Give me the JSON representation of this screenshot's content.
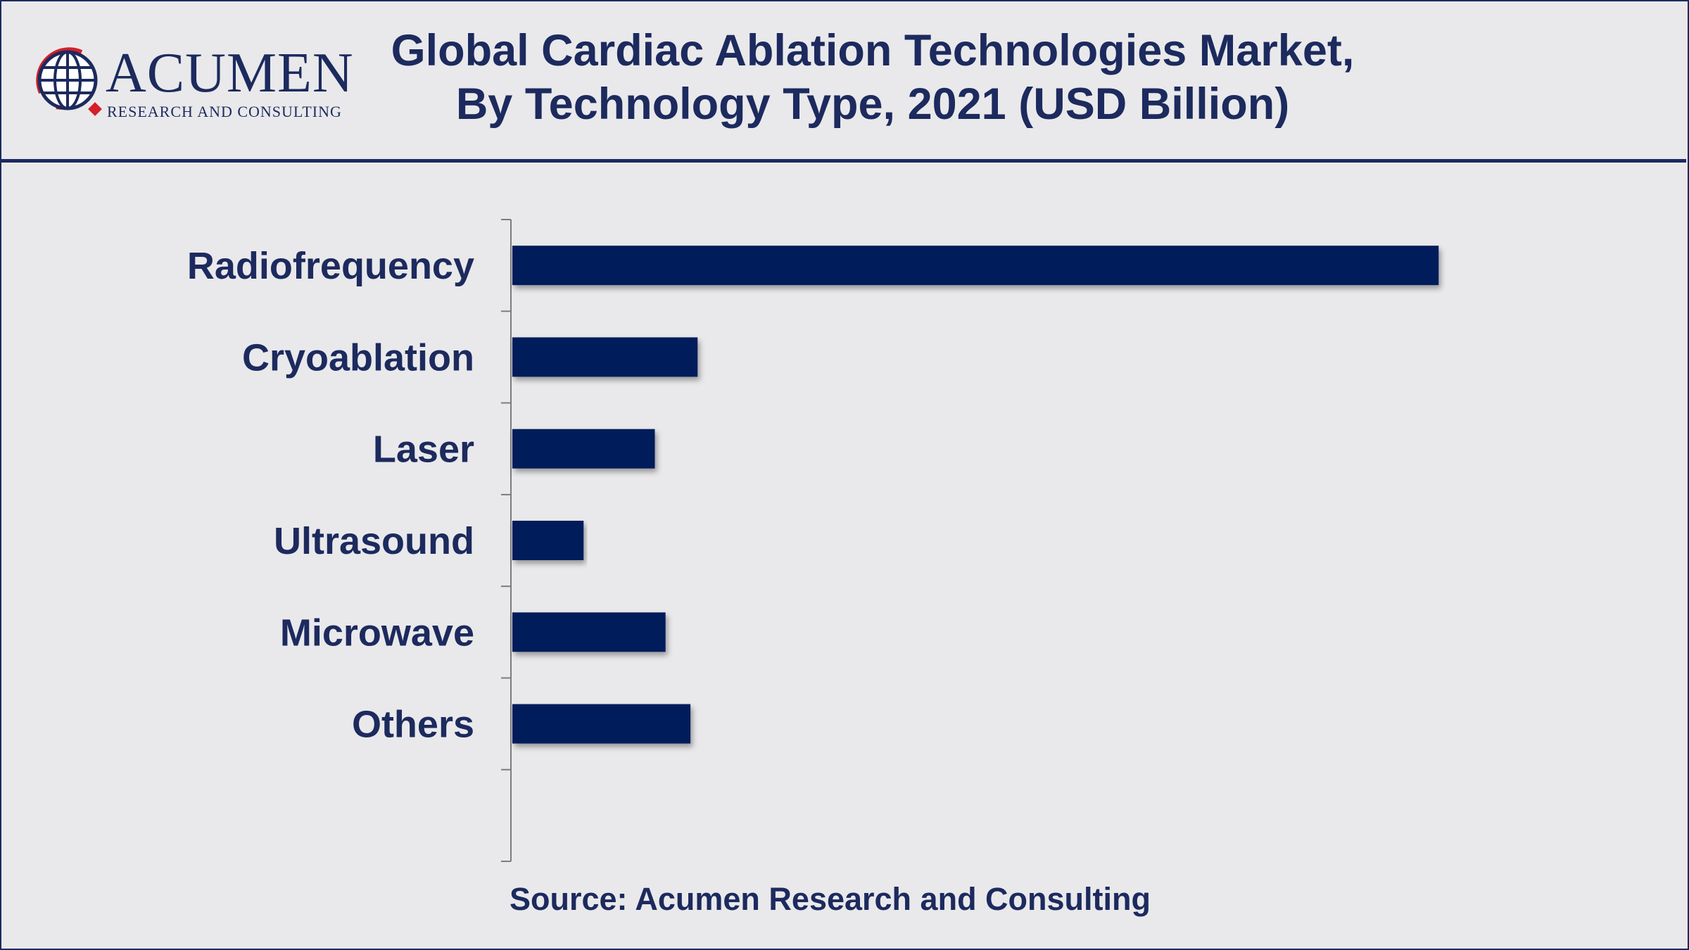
{
  "header": {
    "title_line1": "Global Cardiac Ablation Technologies Market,",
    "title_line2": "By Technology Type, 2021 (USD Billion)"
  },
  "logo": {
    "word": "ACUMEN",
    "sub": "RESEARCH AND CONSULTING",
    "icon": "globe-icon"
  },
  "footer": {
    "source": "Source: Acumen Research and Consulting"
  },
  "colors": {
    "bar": "#031c5a",
    "text": "#1c2a5e",
    "logo_accent": "#d42027",
    "background": "#e9e9eb"
  },
  "chart_data": {
    "type": "bar",
    "orientation": "horizontal",
    "title": "Global Cardiac Ablation Technologies Market, By Technology Type, 2021 (USD Billion)",
    "xlabel": "",
    "ylabel": "",
    "categories": [
      "Radiofrequency",
      "Cryoablation",
      "Laser",
      "Ultrasound",
      "Microwave",
      "Others"
    ],
    "values": [
      2.6,
      0.52,
      0.4,
      0.2,
      0.43,
      0.5
    ],
    "xlim": [
      0,
      3.2
    ],
    "grid": false,
    "legend": "none"
  }
}
